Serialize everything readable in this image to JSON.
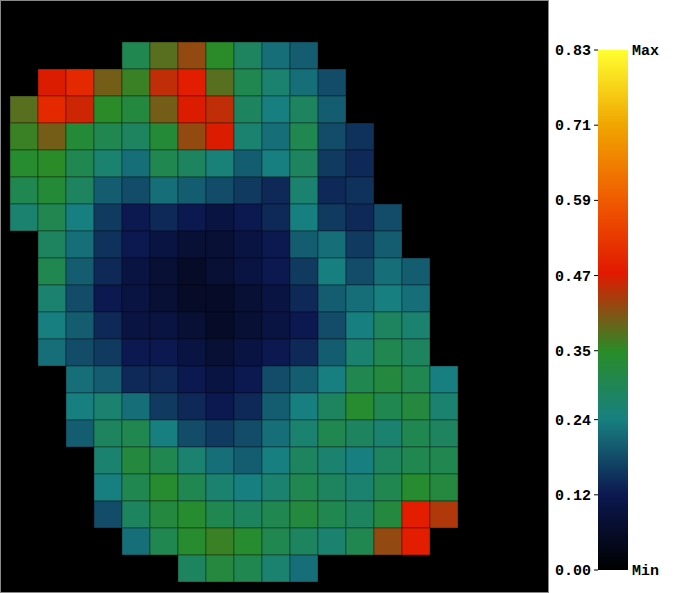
{
  "chart_data": {
    "type": "heatmap",
    "tick_labels": false,
    "cells": [
      [
        null,
        null,
        null,
        null,
        0.3,
        0.38,
        0.42,
        0.35,
        0.28,
        0.22,
        0.2,
        null,
        null,
        null,
        null,
        null
      ],
      [
        null,
        0.47,
        0.5,
        0.4,
        0.36,
        0.45,
        0.48,
        0.38,
        0.3,
        0.26,
        0.22,
        0.18,
        null,
        null,
        null,
        null
      ],
      [
        0.38,
        0.5,
        0.46,
        0.35,
        0.32,
        0.4,
        0.47,
        0.45,
        0.28,
        0.24,
        0.28,
        0.2,
        null,
        null,
        null,
        null
      ],
      [
        0.36,
        0.4,
        0.33,
        0.3,
        0.28,
        0.33,
        0.42,
        0.47,
        0.26,
        0.22,
        0.3,
        0.18,
        0.15,
        null,
        null,
        null
      ],
      [
        0.34,
        0.35,
        0.3,
        0.26,
        0.22,
        0.3,
        0.28,
        0.25,
        0.2,
        0.24,
        0.28,
        0.16,
        0.14,
        null,
        null,
        null
      ],
      [
        0.3,
        0.33,
        0.28,
        0.2,
        0.18,
        0.22,
        0.2,
        0.18,
        0.16,
        0.14,
        0.26,
        0.14,
        0.15,
        null,
        null,
        null
      ],
      [
        0.26,
        0.3,
        0.24,
        0.16,
        0.12,
        0.14,
        0.12,
        0.1,
        0.12,
        0.14,
        0.24,
        0.16,
        0.14,
        0.18,
        null,
        null
      ],
      [
        null,
        0.28,
        0.22,
        0.15,
        0.12,
        0.1,
        0.08,
        0.08,
        0.1,
        0.12,
        0.2,
        0.22,
        0.16,
        0.2,
        null,
        null
      ],
      [
        null,
        0.3,
        0.2,
        0.14,
        0.1,
        0.08,
        0.06,
        0.08,
        0.1,
        0.12,
        0.16,
        0.24,
        0.18,
        0.22,
        0.2,
        null
      ],
      [
        null,
        0.26,
        0.18,
        0.12,
        0.1,
        0.08,
        0.06,
        0.06,
        0.08,
        0.1,
        0.14,
        0.2,
        0.22,
        0.24,
        0.22,
        null
      ],
      [
        null,
        0.24,
        0.2,
        0.14,
        0.1,
        0.1,
        0.08,
        0.06,
        0.08,
        0.1,
        0.12,
        0.18,
        0.24,
        0.28,
        0.26,
        null
      ],
      [
        null,
        0.22,
        0.18,
        0.16,
        0.12,
        0.12,
        0.1,
        0.08,
        0.1,
        0.12,
        0.14,
        0.2,
        0.26,
        0.3,
        0.28,
        null
      ],
      [
        null,
        null,
        0.22,
        0.2,
        0.14,
        0.14,
        0.12,
        0.1,
        0.12,
        0.18,
        0.2,
        0.24,
        0.3,
        0.32,
        0.3,
        0.24
      ],
      [
        null,
        null,
        0.24,
        0.26,
        0.22,
        0.16,
        0.14,
        0.12,
        0.14,
        0.2,
        0.24,
        0.28,
        0.34,
        0.3,
        0.32,
        0.26
      ],
      [
        null,
        null,
        0.2,
        0.28,
        0.3,
        0.24,
        0.18,
        0.16,
        0.18,
        0.22,
        0.26,
        0.3,
        0.28,
        0.26,
        0.3,
        0.28
      ],
      [
        null,
        null,
        null,
        0.26,
        0.32,
        0.3,
        0.26,
        0.22,
        0.2,
        0.24,
        0.28,
        0.26,
        0.24,
        0.28,
        0.3,
        0.3
      ],
      [
        null,
        null,
        null,
        0.24,
        0.3,
        0.34,
        0.3,
        0.26,
        0.24,
        0.26,
        0.3,
        0.28,
        0.26,
        0.3,
        0.34,
        0.32
      ],
      [
        null,
        null,
        null,
        0.18,
        0.28,
        0.32,
        0.34,
        0.3,
        0.28,
        0.3,
        0.32,
        0.3,
        0.28,
        0.32,
        0.48,
        0.44
      ],
      [
        null,
        null,
        null,
        null,
        0.22,
        0.3,
        0.34,
        0.36,
        0.34,
        0.3,
        0.28,
        0.26,
        0.3,
        0.42,
        0.48,
        null
      ],
      [
        null,
        null,
        null,
        null,
        null,
        null,
        0.28,
        0.32,
        0.3,
        0.26,
        0.22,
        null,
        null,
        null,
        null,
        null
      ]
    ],
    "colorbar": {
      "range": [
        0,
        0.83
      ],
      "ticks": [
        {
          "value": 0,
          "label": "0.00"
        },
        0.12,
        0.24,
        0.35,
        0.47,
        0.59,
        0.71,
        0.83
      ],
      "max_label": "Max",
      "min_label": "Min"
    }
  }
}
